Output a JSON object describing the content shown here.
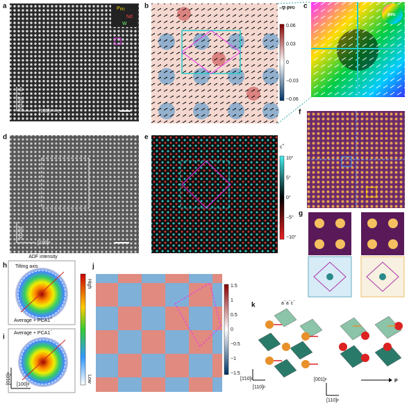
{
  "panels": {
    "a": {
      "label": "a",
      "p": "P",
      "pd": "PD",
      "nd": "Nd",
      "w": "W",
      "y_axis": "[010]",
      "y_sub": "p",
      "y_eq": " = e",
      "y_eq_sub": "y",
      "x_axis": "[100]",
      "x_sub": "p",
      "x_eq": " = e",
      "x_eq_sub": "x"
    },
    "b": {
      "label": "b",
      "title": "−∇·P",
      "title_sub": "PD",
      "ticks": [
        "0.06",
        "0.03",
        "0",
        "−0.03",
        "−0.06"
      ]
    },
    "c": {
      "label": "c",
      "p": "P",
      "pd": "PD"
    },
    "d": {
      "label": "d",
      "y_axis": "[010]",
      "y_sub": "p",
      "x_axis": "[100]",
      "x_sub": "p"
    },
    "e": {
      "label": "e",
      "title": "c",
      "title_sup": "+",
      "ticks": [
        "10°",
        "5°",
        "0°",
        "−5°",
        "−10°"
      ]
    },
    "f": {
      "label": "f"
    },
    "g": {
      "label": "g"
    },
    "h": {
      "label": "h",
      "title": "ADF intensity",
      "axis": "Tilting axis",
      "caption": "Average + PCA1",
      "caption_sup": "+",
      "high": "High",
      "low": "Low"
    },
    "i": {
      "label": "i",
      "caption": "Average + PCA1",
      "caption_sup": "−",
      "y_axis": "[010]",
      "y_sub": "p",
      "x_axis": "[100]",
      "x_sub": "p"
    },
    "j": {
      "label": "j",
      "ticks": [
        "1.5",
        "1",
        "0.5",
        "0",
        "−0.5",
        "−1",
        "−1.5"
      ]
    },
    "k": {
      "label": "k",
      "tilt": "a",
      "tilt2": "−",
      "tilt3": "a",
      "tilt4": "−",
      "tilt5": "c",
      "tilt6": "−",
      "left_y": "[1̄10]",
      "left_y_sub": "p",
      "left_x": "[110]",
      "left_x_sub": "p",
      "right_y": "[001]",
      "right_y_sub": "p",
      "right_x": "[110]",
      "right_x_sub": "p",
      "p": "P"
    }
  }
}
